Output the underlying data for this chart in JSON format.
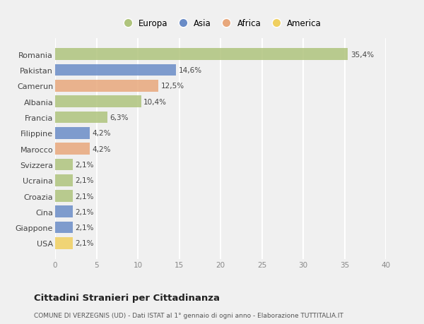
{
  "categories": [
    "Romania",
    "Pakistan",
    "Camerun",
    "Albania",
    "Francia",
    "Filippine",
    "Marocco",
    "Svizzera",
    "Ucraina",
    "Croazia",
    "Cina",
    "Giappone",
    "USA"
  ],
  "values": [
    35.4,
    14.6,
    12.5,
    10.4,
    6.3,
    4.2,
    4.2,
    2.1,
    2.1,
    2.1,
    2.1,
    2.1,
    2.1
  ],
  "labels": [
    "35,4%",
    "14,6%",
    "12,5%",
    "10,4%",
    "6,3%",
    "4,2%",
    "4,2%",
    "2,1%",
    "2,1%",
    "2,1%",
    "2,1%",
    "2,1%",
    "2,1%"
  ],
  "colors": [
    "#afc47d",
    "#6a8cc7",
    "#e8a87c",
    "#afc47d",
    "#afc47d",
    "#6a8cc7",
    "#e8a87c",
    "#afc47d",
    "#afc47d",
    "#afc47d",
    "#6a8cc7",
    "#6a8cc7",
    "#f0d060"
  ],
  "legend_labels": [
    "Europa",
    "Asia",
    "Africa",
    "America"
  ],
  "legend_colors": [
    "#afc47d",
    "#6a8cc7",
    "#e8a87c",
    "#f0d060"
  ],
  "xlim": [
    0,
    40
  ],
  "xticks": [
    0,
    5,
    10,
    15,
    20,
    25,
    30,
    35,
    40
  ],
  "title": "Cittadini Stranieri per Cittadinanza",
  "subtitle": "COMUNE DI VERZEGNIS (UD) - Dati ISTAT al 1° gennaio di ogni anno - Elaborazione TUTTITALIA.IT",
  "background_color": "#f0f0f0",
  "bar_height": 0.75
}
